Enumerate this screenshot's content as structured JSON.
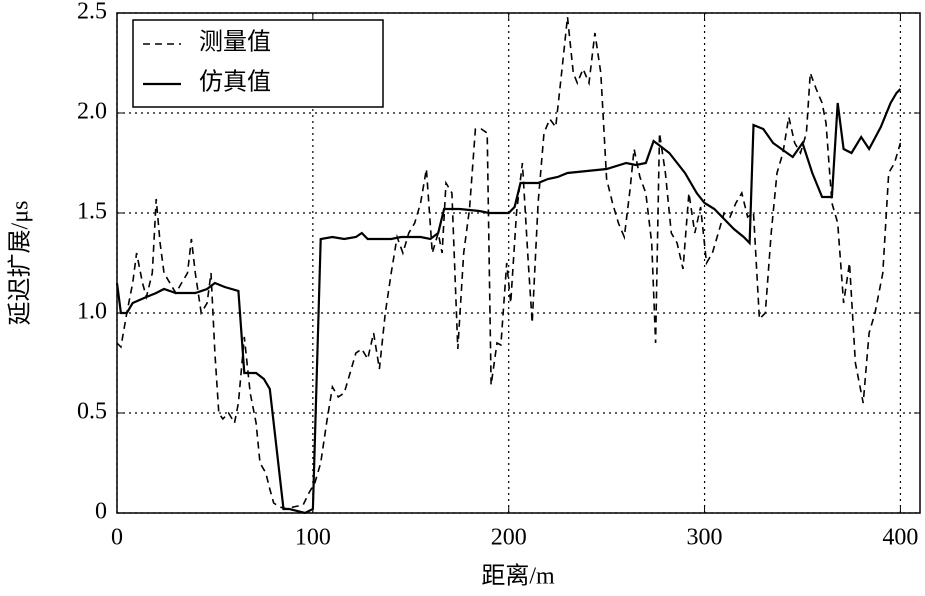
{
  "chart_data": {
    "type": "line",
    "xlabel": "距离/m",
    "ylabel": "延迟扩展/μs",
    "xlim": [
      0,
      410
    ],
    "ylim": [
      0,
      2.5
    ],
    "xticks": [
      0,
      100,
      200,
      300,
      400
    ],
    "yticks": [
      0,
      0.5,
      {
        "value": 1,
        "label": "1.0"
      },
      1.5,
      {
        "value": 2,
        "label": "2.0"
      },
      2.5
    ],
    "grid": true,
    "legend_position": "upper left",
    "series": [
      {
        "name": "测量值",
        "color": "#000000",
        "style": "dashed",
        "x": [
          0,
          2,
          5,
          8,
          10,
          13,
          15,
          18,
          20,
          22,
          24,
          27,
          30,
          33,
          36,
          38,
          40,
          43,
          46,
          48,
          50,
          52,
          54,
          57,
          60,
          62,
          65,
          68,
          71,
          73,
          76,
          78,
          80,
          83,
          87,
          90,
          95,
          98,
          101,
          104,
          107,
          110,
          113,
          116,
          119,
          122,
          125,
          128,
          131,
          134,
          137,
          140,
          143,
          146,
          149,
          152,
          155,
          158,
          161,
          164,
          166,
          168,
          171,
          174,
          177,
          180,
          183,
          186,
          189,
          191,
          194,
          196,
          199,
          201,
          204,
          207,
          210,
          212,
          215,
          218,
          221,
          224,
          227,
          230,
          233,
          235,
          238,
          241,
          244,
          247,
          250,
          253,
          256,
          259,
          262,
          264,
          267,
          270,
          273,
          275,
          277,
          280,
          283,
          286,
          289,
          292,
          295,
          298,
          301,
          304,
          307,
          310,
          313,
          316,
          319,
          322,
          325,
          328,
          331,
          334,
          337,
          340,
          343,
          346,
          349,
          352,
          354,
          357,
          360,
          362,
          365,
          368,
          371,
          374,
          377,
          381,
          384,
          387,
          391,
          394,
          397,
          400
        ],
        "values": [
          0.85,
          0.83,
          1.0,
          1.15,
          1.3,
          1.15,
          1.08,
          1.2,
          1.57,
          1.35,
          1.2,
          1.15,
          1.1,
          1.15,
          1.2,
          1.37,
          1.2,
          1.0,
          1.05,
          1.2,
          0.8,
          0.5,
          0.47,
          0.5,
          0.45,
          0.55,
          0.88,
          0.6,
          0.45,
          0.25,
          0.2,
          0.12,
          0.05,
          0.03,
          0.02,
          0.03,
          0.04,
          0.1,
          0.15,
          0.25,
          0.45,
          0.63,
          0.58,
          0.6,
          0.7,
          0.8,
          0.82,
          0.77,
          0.9,
          0.72,
          1.0,
          1.2,
          1.38,
          1.3,
          1.4,
          1.45,
          1.55,
          1.72,
          1.3,
          1.4,
          1.3,
          1.65,
          1.6,
          0.82,
          1.3,
          1.52,
          1.92,
          1.92,
          1.9,
          0.64,
          0.85,
          0.84,
          1.25,
          1.05,
          1.5,
          1.75,
          1.25,
          0.95,
          1.55,
          1.9,
          1.97,
          1.93,
          2.2,
          2.48,
          2.2,
          2.15,
          2.22,
          2.15,
          2.4,
          2.2,
          1.67,
          1.55,
          1.45,
          1.38,
          1.62,
          1.82,
          1.68,
          1.6,
          1.35,
          0.85,
          1.9,
          1.7,
          1.4,
          1.35,
          1.22,
          1.6,
          1.4,
          1.53,
          1.25,
          1.3,
          1.4,
          1.5,
          1.48,
          1.55,
          1.6,
          1.48,
          1.5,
          0.97,
          1.0,
          1.4,
          1.7,
          1.8,
          1.98,
          1.85,
          1.8,
          1.9,
          2.2,
          2.12,
          2.05,
          1.95,
          1.55,
          1.45,
          1.05,
          1.25,
          0.75,
          0.55,
          0.9,
          1.0,
          1.2,
          1.7,
          1.75,
          1.85
        ]
      },
      {
        "name": "仿真值",
        "color": "#000000",
        "style": "solid",
        "x": [
          0,
          2,
          5,
          8,
          15,
          20,
          24,
          30,
          40,
          46,
          50,
          55,
          62,
          65,
          71,
          75,
          78,
          85,
          88,
          96,
          100,
          104,
          110,
          116,
          122,
          125,
          128,
          140,
          145,
          155,
          160,
          164,
          167,
          175,
          185,
          190,
          200,
          203,
          206,
          215,
          220,
          225,
          230,
          240,
          250,
          260,
          265,
          270,
          274,
          278,
          282,
          290,
          296,
          300,
          305,
          310,
          315,
          320,
          323,
          325,
          330,
          335,
          345,
          350,
          355,
          360,
          365,
          368,
          371,
          375,
          380,
          384,
          390,
          395,
          398,
          400
        ],
        "values": [
          1.15,
          1.0,
          1.0,
          1.05,
          1.08,
          1.1,
          1.12,
          1.1,
          1.1,
          1.12,
          1.15,
          1.13,
          1.11,
          0.7,
          0.7,
          0.67,
          0.62,
          0.02,
          0.02,
          0.0,
          0.02,
          1.37,
          1.38,
          1.37,
          1.38,
          1.4,
          1.37,
          1.37,
          1.38,
          1.38,
          1.37,
          1.4,
          1.52,
          1.52,
          1.51,
          1.5,
          1.5,
          1.53,
          1.65,
          1.65,
          1.67,
          1.68,
          1.7,
          1.71,
          1.72,
          1.75,
          1.74,
          1.75,
          1.86,
          1.83,
          1.8,
          1.7,
          1.6,
          1.55,
          1.52,
          1.47,
          1.42,
          1.38,
          1.35,
          1.94,
          1.92,
          1.85,
          1.78,
          1.85,
          1.7,
          1.58,
          1.58,
          2.05,
          1.82,
          1.8,
          1.88,
          1.82,
          1.93,
          2.05,
          2.1,
          2.12
        ]
      }
    ]
  }
}
